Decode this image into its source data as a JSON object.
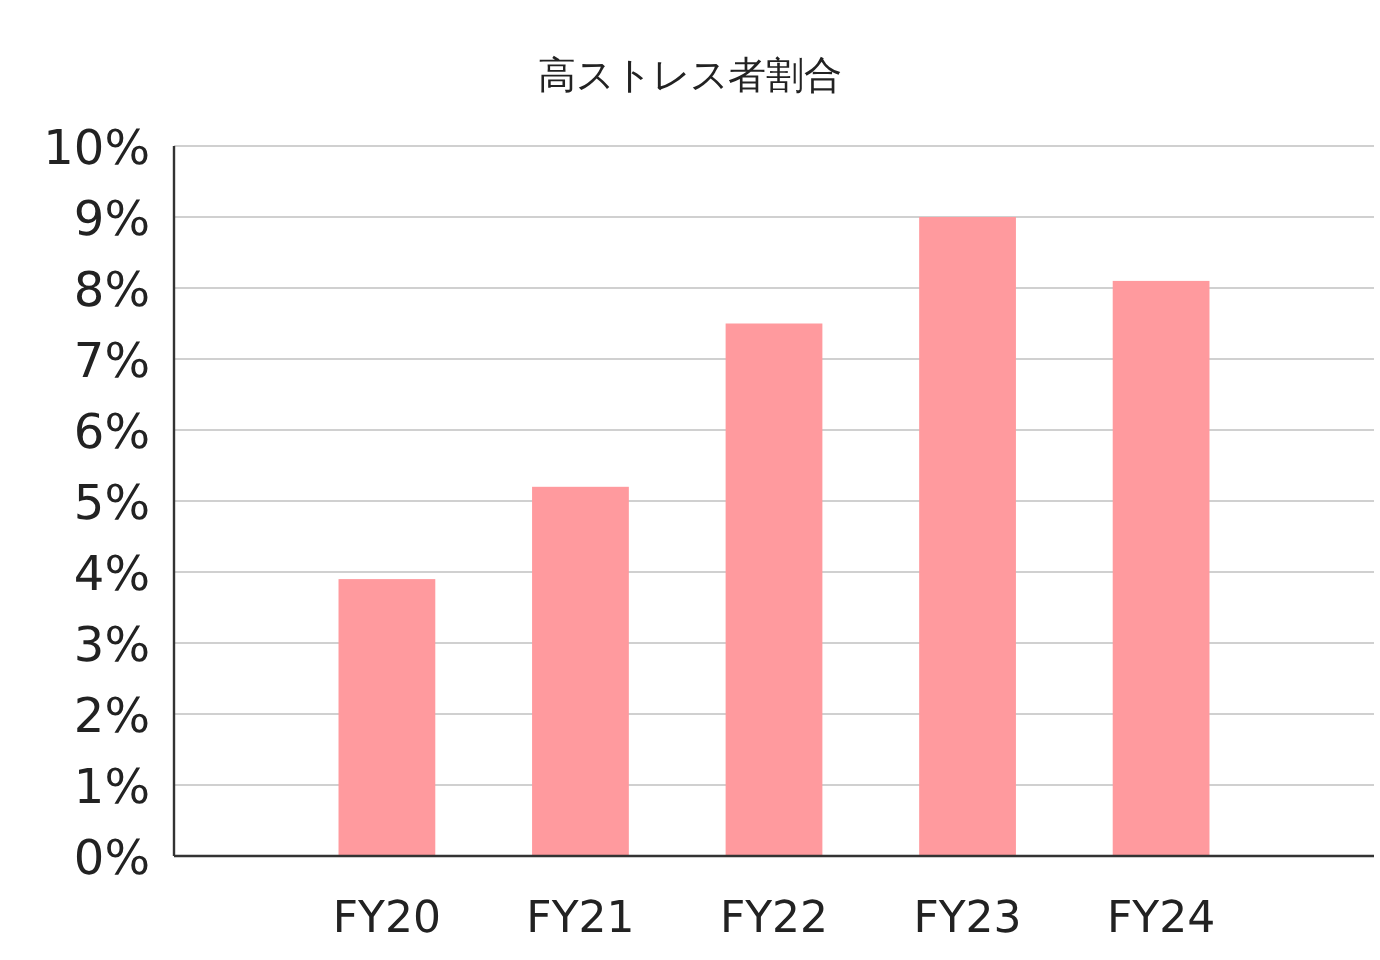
{
  "chart_data": {
    "type": "bar",
    "title": "高ストレス者割合",
    "categories": [
      "FY20",
      "FY21",
      "FY22",
      "FY23",
      "FY24"
    ],
    "values": [
      3.9,
      5.2,
      7.5,
      9.0,
      8.1
    ],
    "color": "#ff9a9e",
    "ylim": [
      0,
      10
    ],
    "yticks": [
      {
        "value": 0,
        "label": "0%"
      },
      {
        "value": 1,
        "label": "1%"
      },
      {
        "value": 2,
        "label": "2%"
      },
      {
        "value": 3,
        "label": "3%"
      },
      {
        "value": 4,
        "label": "4%"
      },
      {
        "value": 5,
        "label": "5%"
      },
      {
        "value": 6,
        "label": "6%"
      },
      {
        "value": 7,
        "label": "7%"
      },
      {
        "value": 8,
        "label": "8%"
      },
      {
        "value": 9,
        "label": "9%"
      },
      {
        "value": 10,
        "label": "10%"
      }
    ],
    "grid": "y"
  }
}
